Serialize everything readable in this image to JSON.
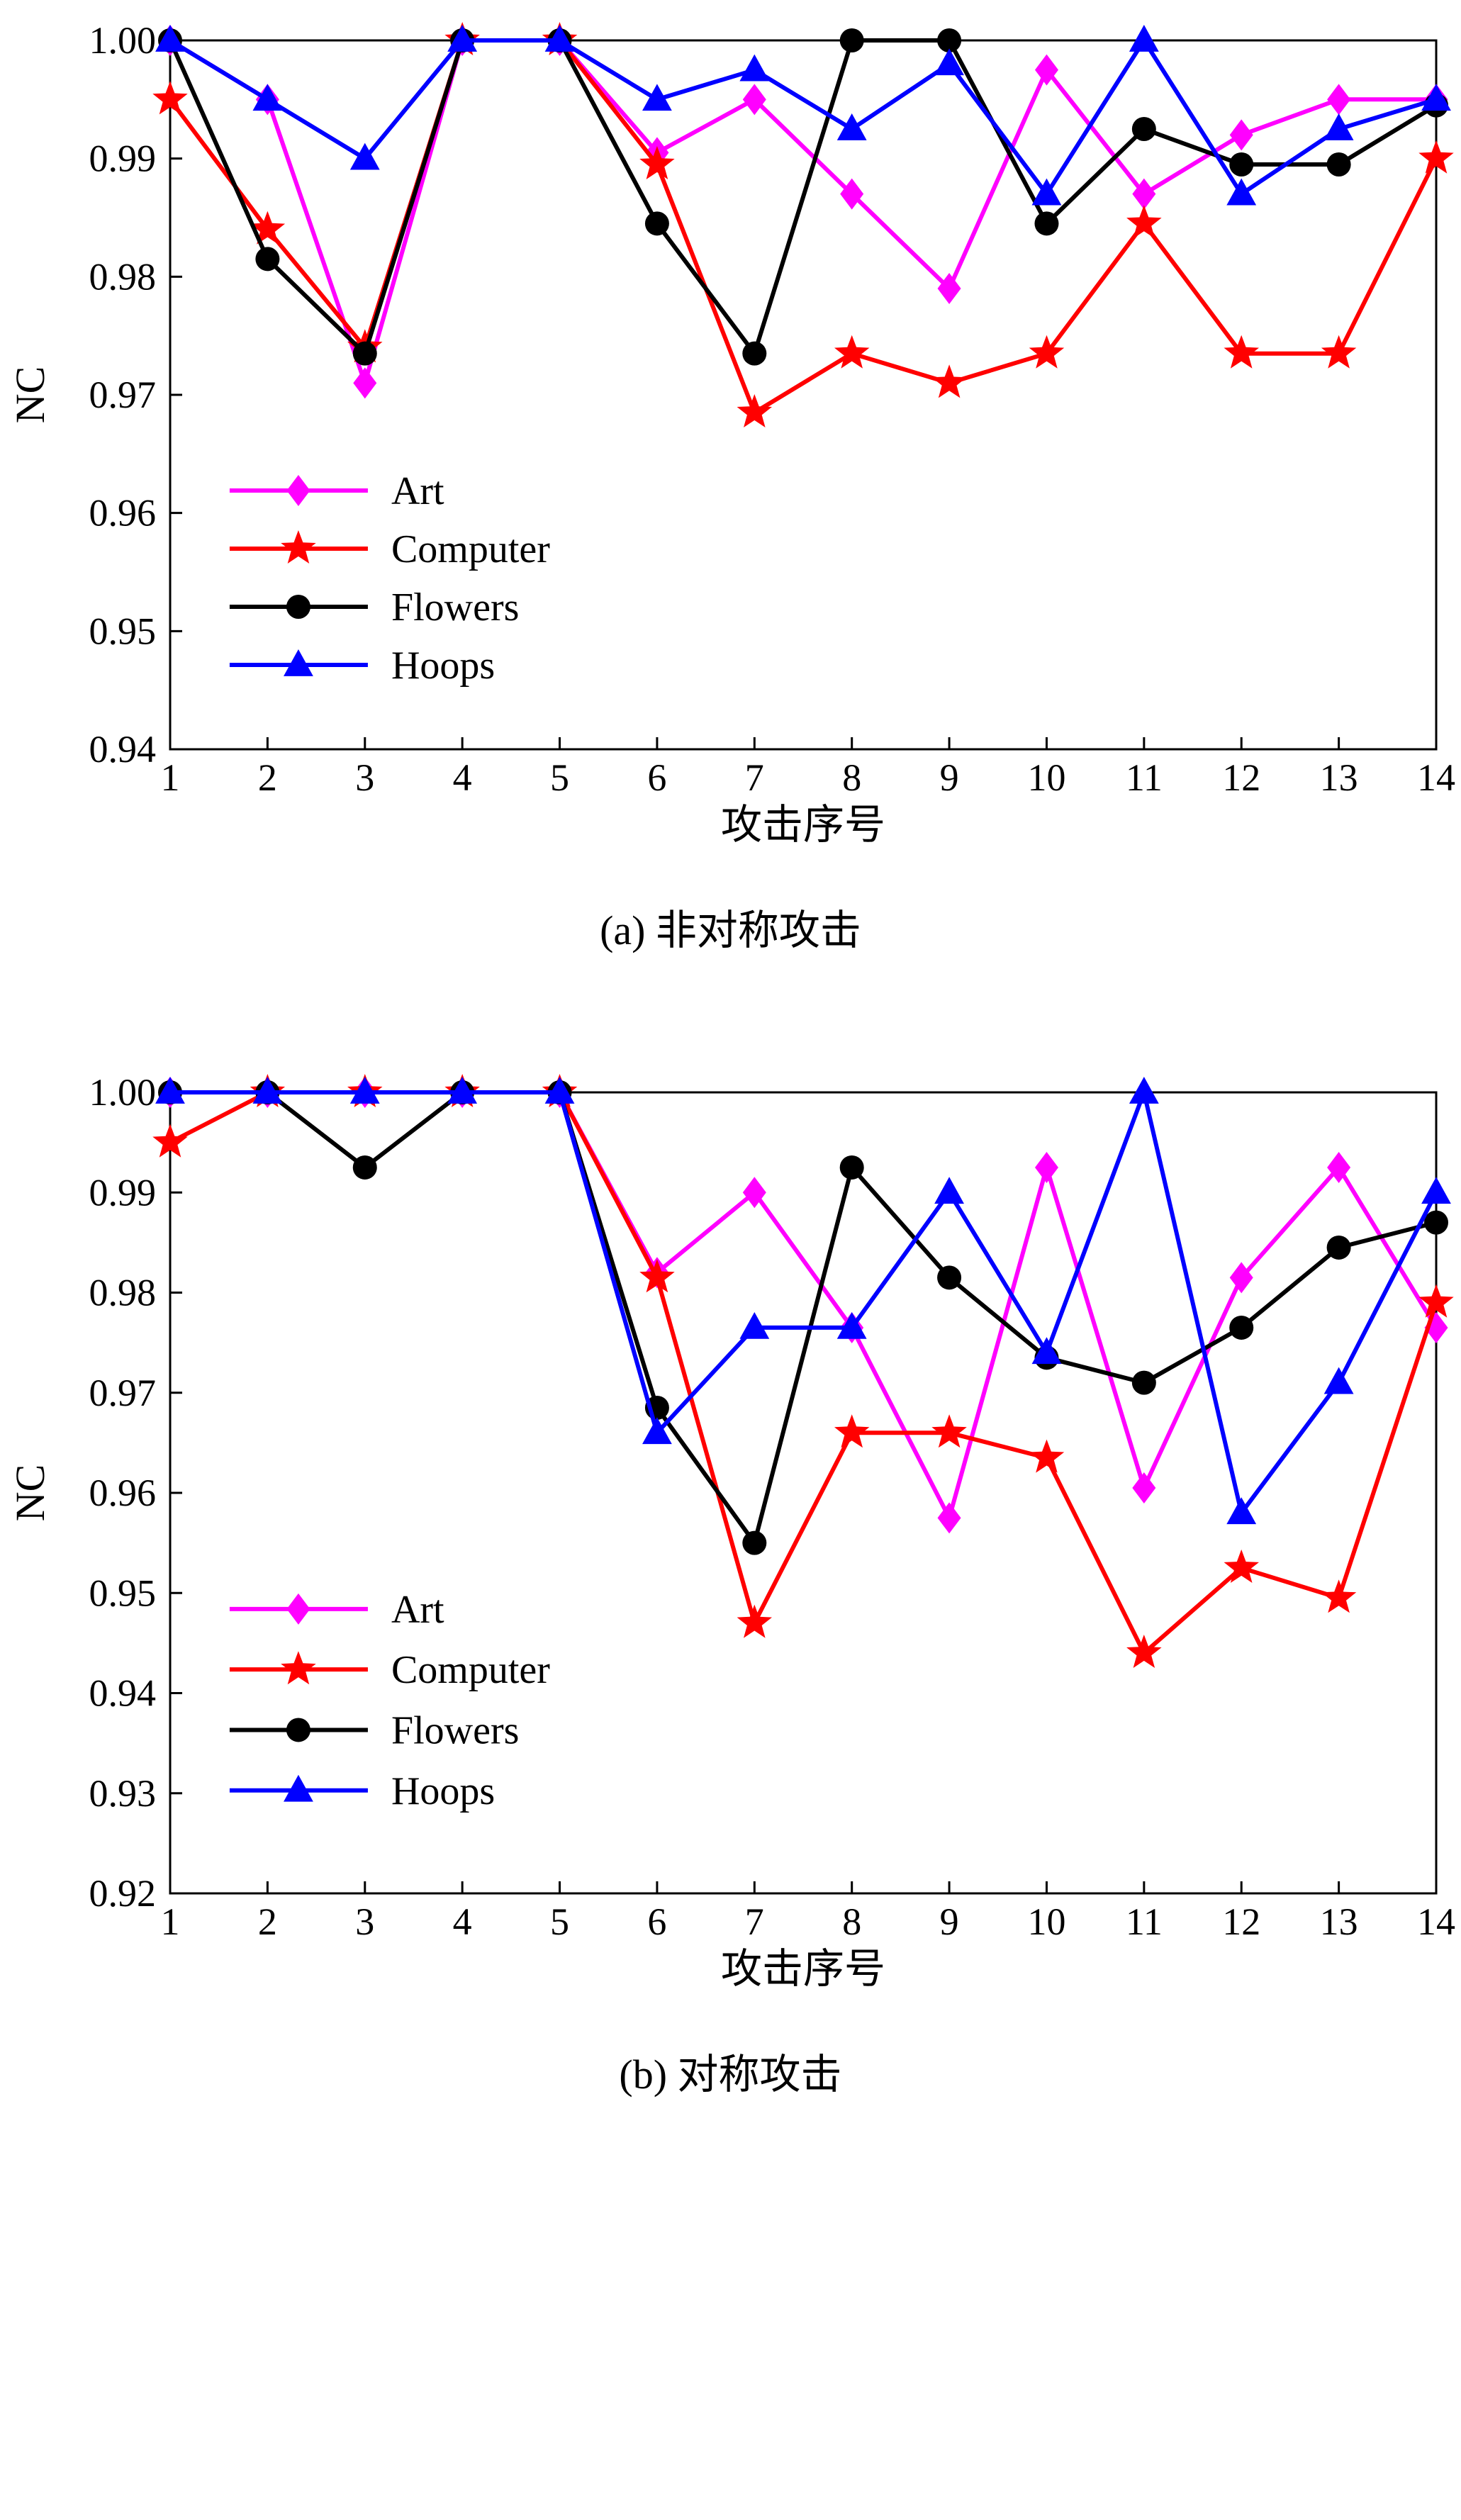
{
  "chart_data": [
    {
      "id": "chart-a",
      "type": "line",
      "caption": "(a) 非对称攻击",
      "xlabel": "攻击序号",
      "ylabel": "NC",
      "x": [
        1,
        2,
        3,
        4,
        5,
        6,
        7,
        8,
        9,
        10,
        11,
        12,
        13,
        14
      ],
      "xlim": [
        1,
        14
      ],
      "ylim": [
        0.94,
        1.0
      ],
      "yticks": [
        0.94,
        0.95,
        0.96,
        0.97,
        0.98,
        0.99,
        1.0
      ],
      "grid": false,
      "legend_position": "inside-left-lower",
      "series": [
        {
          "name": "Art",
          "color": "#FF00FF",
          "marker": "diamond",
          "values": [
            1.0,
            0.995,
            0.971,
            1.0,
            1.0,
            0.9905,
            0.995,
            0.987,
            0.979,
            0.9975,
            0.987,
            0.992,
            0.995,
            0.995
          ]
        },
        {
          "name": "Computer",
          "color": "#FF0000",
          "marker": "star",
          "values": [
            0.995,
            0.984,
            0.974,
            1.0,
            1.0,
            0.9895,
            0.9685,
            0.9735,
            0.971,
            0.9735,
            0.9845,
            0.9735,
            0.9735,
            0.99
          ]
        },
        {
          "name": "Flowers",
          "color": "#000000",
          "marker": "circle",
          "values": [
            1.0,
            0.9815,
            0.9735,
            1.0,
            1.0,
            0.9845,
            0.9735,
            1.0,
            1.0,
            0.9845,
            0.9925,
            0.9895,
            0.9895,
            0.9945
          ]
        },
        {
          "name": "Hoops",
          "color": "#0000FF",
          "marker": "triangle",
          "values": [
            1.0,
            0.995,
            0.99,
            1.0,
            1.0,
            0.995,
            0.9975,
            0.9925,
            0.998,
            0.987,
            1.0,
            0.987,
            0.9925,
            0.995
          ]
        }
      ]
    },
    {
      "id": "chart-b",
      "type": "line",
      "caption": "(b) 对称攻击",
      "xlabel": "攻击序号",
      "ylabel": "NC",
      "x": [
        1,
        2,
        3,
        4,
        5,
        6,
        7,
        8,
        9,
        10,
        11,
        12,
        13,
        14
      ],
      "xlim": [
        1,
        14
      ],
      "ylim": [
        0.92,
        1.0
      ],
      "yticks": [
        0.92,
        0.93,
        0.94,
        0.95,
        0.96,
        0.97,
        0.98,
        0.99,
        1.0
      ],
      "grid": false,
      "legend_position": "inside-left-lower",
      "series": [
        {
          "name": "Art",
          "color": "#FF00FF",
          "marker": "diamond",
          "values": [
            1.0,
            1.0,
            1.0,
            1.0,
            1.0,
            0.982,
            0.99,
            0.9765,
            0.9575,
            0.9925,
            0.9605,
            0.9815,
            0.9925,
            0.9765
          ]
        },
        {
          "name": "Computer",
          "color": "#FF0000",
          "marker": "star",
          "values": [
            0.995,
            1.0,
            1.0,
            1.0,
            1.0,
            0.9815,
            0.947,
            0.966,
            0.966,
            0.9635,
            0.944,
            0.9525,
            0.9495,
            0.979
          ]
        },
        {
          "name": "Flowers",
          "color": "#000000",
          "marker": "circle",
          "values": [
            1.0,
            1.0,
            0.9925,
            1.0,
            1.0,
            0.9685,
            0.955,
            0.9925,
            0.9815,
            0.9735,
            0.971,
            0.9765,
            0.9845,
            0.987
          ]
        },
        {
          "name": "Hoops",
          "color": "#0000FF",
          "marker": "triangle",
          "values": [
            1.0,
            1.0,
            1.0,
            1.0,
            1.0,
            0.966,
            0.9765,
            0.9765,
            0.99,
            0.974,
            1.0,
            0.958,
            0.971,
            0.99
          ]
        }
      ]
    }
  ]
}
